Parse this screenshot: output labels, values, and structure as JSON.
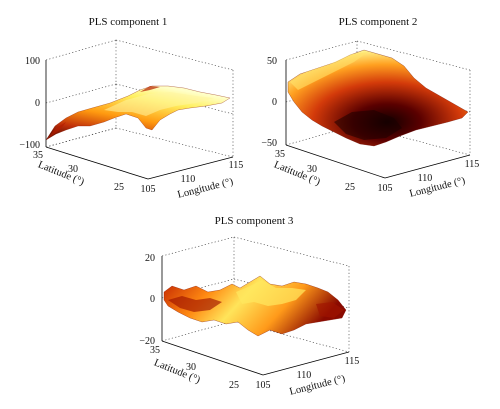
{
  "chart_data": [
    {
      "type": "surface",
      "title": "PLS component 1",
      "xlabel": "Longitude (°)",
      "ylabel": "Latitude (°)",
      "zlabel": "",
      "xticks": [
        "105",
        "110",
        "115"
      ],
      "yticks": [
        "25",
        "30",
        "35"
      ],
      "zticks": [
        "100",
        "0",
        "−100"
      ],
      "xlim": [
        105,
        115
      ],
      "ylim": [
        25,
        35
      ],
      "zlim": [
        -100,
        100
      ],
      "colormap": "hot",
      "grid": true
    },
    {
      "type": "surface",
      "title": "PLS component 2",
      "xlabel": "Longitude (°)",
      "ylabel": "Latitude (°)",
      "zlabel": "",
      "xticks": [
        "105",
        "110",
        "115"
      ],
      "yticks": [
        "25",
        "30",
        "35"
      ],
      "zticks": [
        "50",
        "0",
        "−50"
      ],
      "xlim": [
        105,
        115
      ],
      "ylim": [
        25,
        35
      ],
      "zlim": [
        -50,
        50
      ],
      "colormap": "hot",
      "grid": true
    },
    {
      "type": "surface",
      "title": "PLS component 3",
      "xlabel": "Longitude (°)",
      "ylabel": "Latitude (°)",
      "zlabel": "",
      "xticks": [
        "105",
        "110",
        "115"
      ],
      "yticks": [
        "25",
        "30",
        "35"
      ],
      "zticks": [
        "20",
        "0",
        "−20"
      ],
      "xlim": [
        105,
        115
      ],
      "ylim": [
        25,
        35
      ],
      "zlim": [
        -20,
        20
      ],
      "colormap": "hot",
      "grid": true
    }
  ]
}
